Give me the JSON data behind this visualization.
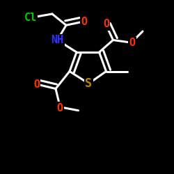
{
  "background": "#000000",
  "bond_color": "#ffffff",
  "bond_width": 2.2,
  "atom_colors": {
    "Cl": "#00cc00",
    "O": "#ff3300",
    "N": "#3333ff",
    "S": "#bb8800",
    "C": "#ffffff"
  },
  "figsize": [
    2.5,
    2.5
  ],
  "dpi": 100
}
